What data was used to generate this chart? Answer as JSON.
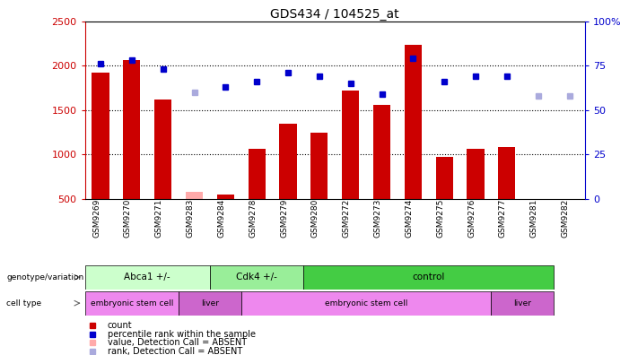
{
  "title": "GDS434 / 104525_at",
  "samples": [
    "GSM9269",
    "GSM9270",
    "GSM9271",
    "GSM9283",
    "GSM9284",
    "GSM9278",
    "GSM9279",
    "GSM9280",
    "GSM9272",
    "GSM9273",
    "GSM9274",
    "GSM9275",
    "GSM9276",
    "GSM9277",
    "GSM9281",
    "GSM9282"
  ],
  "counts": [
    1920,
    2060,
    1620,
    580,
    550,
    1060,
    1350,
    1250,
    1720,
    1560,
    2240,
    970,
    1060,
    1080,
    500,
    500
  ],
  "absent_count": [
    false,
    false,
    false,
    true,
    false,
    false,
    false,
    false,
    false,
    false,
    false,
    false,
    false,
    false,
    true,
    true
  ],
  "ranks": [
    76,
    78,
    73,
    null,
    63,
    66,
    71,
    69,
    65,
    59,
    79,
    66,
    69,
    69,
    null,
    null
  ],
  "absent_rank": [
    false,
    false,
    false,
    true,
    false,
    false,
    false,
    false,
    false,
    false,
    false,
    false,
    false,
    false,
    true,
    true
  ],
  "rank_absent_vals": [
    null,
    null,
    null,
    60,
    null,
    null,
    null,
    null,
    null,
    null,
    null,
    null,
    null,
    null,
    58,
    58
  ],
  "ylim_left": [
    500,
    2500
  ],
  "ylim_right": [
    0,
    100
  ],
  "yticks_left": [
    500,
    1000,
    1500,
    2000,
    2500
  ],
  "yticks_right": [
    0,
    25,
    50,
    75,
    100
  ],
  "genotype_groups": [
    {
      "label": "Abca1 +/-",
      "start": 0,
      "end": 4,
      "color": "#ccffcc"
    },
    {
      "label": "Cdk4 +/-",
      "start": 4,
      "end": 7,
      "color": "#99ee99"
    },
    {
      "label": "control",
      "start": 7,
      "end": 15,
      "color": "#44cc44"
    }
  ],
  "celltype_groups": [
    {
      "label": "embryonic stem cell",
      "start": 0,
      "end": 3,
      "color": "#ee88ee"
    },
    {
      "label": "liver",
      "start": 3,
      "end": 5,
      "color": "#cc66cc"
    },
    {
      "label": "embryonic stem cell",
      "start": 5,
      "end": 13,
      "color": "#ee88ee"
    },
    {
      "label": "liver",
      "start": 13,
      "end": 15,
      "color": "#cc66cc"
    }
  ],
  "bar_color": "#cc0000",
  "absent_bar_color": "#ffaaaa",
  "rank_color": "#0000cc",
  "absent_rank_color": "#aaaadd",
  "left_axis_color": "#cc0000",
  "right_axis_color": "#0000cc"
}
